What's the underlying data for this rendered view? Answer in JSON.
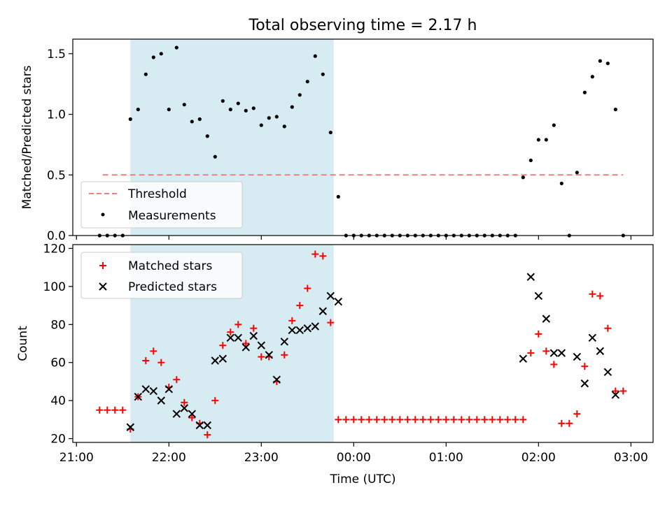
{
  "chart_data": [
    {
      "type": "scatter",
      "title": "Total observing time = 2.17 h",
      "ylabel": "Matched/Predicted stars",
      "ylim": [
        0,
        1.62
      ],
      "xlim_hours": [
        20.96,
        27.24
      ],
      "yticks": [
        0.0,
        0.5,
        1.0,
        1.5
      ],
      "ytick_labels": [
        "0.0",
        "0.5",
        "1.0",
        "1.5"
      ],
      "shaded_span": [
        "21:35",
        "23:47"
      ],
      "grid": false,
      "legend_position": "lower-left",
      "threshold": {
        "name": "Threshold",
        "value": 0.5,
        "x_start": "21:17",
        "x_end": "02:55",
        "color": "#f08080"
      },
      "series": [
        {
          "name": "Measurements",
          "color": "#000000",
          "points": [
            [
              "21:15",
              0
            ],
            [
              "21:20",
              0
            ],
            [
              "21:25",
              0
            ],
            [
              "21:30",
              0
            ],
            [
              "21:35",
              0.96
            ],
            [
              "21:40",
              1.04
            ],
            [
              "21:45",
              1.33
            ],
            [
              "21:50",
              1.47
            ],
            [
              "21:55",
              1.5
            ],
            [
              "22:00",
              1.04
            ],
            [
              "22:05",
              1.55
            ],
            [
              "22:10",
              1.08
            ],
            [
              "22:15",
              0.94
            ],
            [
              "22:20",
              0.96
            ],
            [
              "22:25",
              0.82
            ],
            [
              "22:30",
              0.65
            ],
            [
              "22:35",
              1.11
            ],
            [
              "22:40",
              1.04
            ],
            [
              "22:45",
              1.09
            ],
            [
              "22:50",
              1.03
            ],
            [
              "22:55",
              1.05
            ],
            [
              "23:00",
              0.91
            ],
            [
              "23:05",
              0.97
            ],
            [
              "23:10",
              0.98
            ],
            [
              "23:15",
              0.9
            ],
            [
              "23:20",
              1.06
            ],
            [
              "23:25",
              1.16
            ],
            [
              "23:30",
              1.27
            ],
            [
              "23:35",
              1.48
            ],
            [
              "23:40",
              1.33
            ],
            [
              "23:45",
              0.85
            ],
            [
              "23:50",
              0.32
            ],
            [
              "23:55",
              0
            ],
            [
              "00:00",
              0
            ],
            [
              "00:05",
              0
            ],
            [
              "00:10",
              0
            ],
            [
              "00:15",
              0
            ],
            [
              "00:20",
              0
            ],
            [
              "00:25",
              0
            ],
            [
              "00:30",
              0
            ],
            [
              "00:35",
              0
            ],
            [
              "00:40",
              0
            ],
            [
              "00:45",
              0
            ],
            [
              "00:50",
              0
            ],
            [
              "00:55",
              0
            ],
            [
              "01:00",
              0
            ],
            [
              "01:05",
              0
            ],
            [
              "01:10",
              0
            ],
            [
              "01:15",
              0
            ],
            [
              "01:20",
              0
            ],
            [
              "01:25",
              0
            ],
            [
              "01:30",
              0
            ],
            [
              "01:35",
              0
            ],
            [
              "01:40",
              0
            ],
            [
              "01:45",
              0
            ],
            [
              "01:50",
              0.48
            ],
            [
              "01:55",
              0.62
            ],
            [
              "02:00",
              0.79
            ],
            [
              "02:05",
              0.79
            ],
            [
              "02:10",
              0.91
            ],
            [
              "02:15",
              0.43
            ],
            [
              "02:20",
              0
            ],
            [
              "02:25",
              0.52
            ],
            [
              "02:30",
              1.18
            ],
            [
              "02:35",
              1.31
            ],
            [
              "02:40",
              1.44
            ],
            [
              "02:45",
              1.42
            ],
            [
              "02:50",
              1.04
            ],
            [
              "02:55",
              0
            ]
          ]
        }
      ]
    },
    {
      "type": "scatter",
      "ylabel": "Count",
      "xlabel": "Time (UTC)",
      "ylim": [
        18,
        122
      ],
      "xlim_hours": [
        20.96,
        27.24
      ],
      "yticks": [
        20,
        40,
        60,
        80,
        100,
        120
      ],
      "ytick_labels": [
        "20",
        "40",
        "60",
        "80",
        "100",
        "120"
      ],
      "xticks_hours": [
        21,
        22,
        23,
        24,
        25,
        26,
        27
      ],
      "xtick_labels": [
        "21:00",
        "22:00",
        "23:00",
        "00:00",
        "01:00",
        "02:00",
        "03:00"
      ],
      "shaded_span": [
        "21:35",
        "23:47"
      ],
      "grid": false,
      "legend_position": "top-left",
      "series": [
        {
          "name": "Matched stars",
          "marker": "plus",
          "color": "#ff0000",
          "points": [
            [
              "21:15",
              35
            ],
            [
              "21:20",
              35
            ],
            [
              "21:25",
              35
            ],
            [
              "21:30",
              35
            ],
            [
              "21:35",
              25
            ],
            [
              "21:40",
              42
            ],
            [
              "21:45",
              61
            ],
            [
              "21:50",
              66
            ],
            [
              "21:55",
              60
            ],
            [
              "22:00",
              47
            ],
            [
              "22:05",
              51
            ],
            [
              "22:10",
              39
            ],
            [
              "22:15",
              31
            ],
            [
              "22:20",
              28
            ],
            [
              "22:25",
              22
            ],
            [
              "22:30",
              40
            ],
            [
              "22:35",
              69
            ],
            [
              "22:40",
              76
            ],
            [
              "22:45",
              80
            ],
            [
              "22:50",
              70
            ],
            [
              "22:55",
              78
            ],
            [
              "23:00",
              63
            ],
            [
              "23:05",
              63
            ],
            [
              "23:10",
              50
            ],
            [
              "23:15",
              64
            ],
            [
              "23:20",
              82
            ],
            [
              "23:25",
              90
            ],
            [
              "23:30",
              99
            ],
            [
              "23:35",
              117
            ],
            [
              "23:40",
              116
            ],
            [
              "23:45",
              81
            ],
            [
              "23:50",
              30
            ],
            [
              "23:55",
              30
            ],
            [
              "00:00",
              30
            ],
            [
              "00:05",
              30
            ],
            [
              "00:10",
              30
            ],
            [
              "00:15",
              30
            ],
            [
              "00:20",
              30
            ],
            [
              "00:25",
              30
            ],
            [
              "00:30",
              30
            ],
            [
              "00:35",
              30
            ],
            [
              "00:40",
              30
            ],
            [
              "00:45",
              30
            ],
            [
              "00:50",
              30
            ],
            [
              "00:55",
              30
            ],
            [
              "01:00",
              30
            ],
            [
              "01:05",
              30
            ],
            [
              "01:10",
              30
            ],
            [
              "01:15",
              30
            ],
            [
              "01:20",
              30
            ],
            [
              "01:25",
              30
            ],
            [
              "01:30",
              30
            ],
            [
              "01:35",
              30
            ],
            [
              "01:40",
              30
            ],
            [
              "01:45",
              30
            ],
            [
              "01:50",
              30
            ],
            [
              "01:55",
              65
            ],
            [
              "02:00",
              75
            ],
            [
              "02:05",
              66
            ],
            [
              "02:10",
              59
            ],
            [
              "02:15",
              28
            ],
            [
              "02:20",
              28
            ],
            [
              "02:25",
              33
            ],
            [
              "02:30",
              58
            ],
            [
              "02:35",
              96
            ],
            [
              "02:40",
              95
            ],
            [
              "02:45",
              78
            ],
            [
              "02:50",
              45
            ],
            [
              "02:55",
              45
            ]
          ]
        },
        {
          "name": "Predicted stars",
          "marker": "x",
          "color": "#000000",
          "points": [
            [
              "21:35",
              26
            ],
            [
              "21:40",
              42
            ],
            [
              "21:45",
              46
            ],
            [
              "21:50",
              45
            ],
            [
              "21:55",
              40
            ],
            [
              "22:00",
              46
            ],
            [
              "22:05",
              33
            ],
            [
              "22:10",
              36
            ],
            [
              "22:15",
              33
            ],
            [
              "22:20",
              27
            ],
            [
              "22:25",
              27
            ],
            [
              "22:30",
              61
            ],
            [
              "22:35",
              62
            ],
            [
              "22:40",
              73
            ],
            [
              "22:45",
              73
            ],
            [
              "22:50",
              68
            ],
            [
              "22:55",
              74
            ],
            [
              "23:00",
              69
            ],
            [
              "23:05",
              64
            ],
            [
              "23:10",
              51
            ],
            [
              "23:15",
              71
            ],
            [
              "23:20",
              77
            ],
            [
              "23:25",
              77
            ],
            [
              "23:30",
              78
            ],
            [
              "23:35",
              79
            ],
            [
              "23:40",
              87
            ],
            [
              "23:45",
              95
            ],
            [
              "23:50",
              92
            ],
            [
              "01:50",
              62
            ],
            [
              "01:55",
              105
            ],
            [
              "02:00",
              95
            ],
            [
              "02:05",
              83
            ],
            [
              "02:10",
              65
            ],
            [
              "02:15",
              65
            ],
            [
              "02:25",
              63
            ],
            [
              "02:30",
              49
            ],
            [
              "02:35",
              73
            ],
            [
              "02:40",
              66
            ],
            [
              "02:45",
              55
            ],
            [
              "02:50",
              43
            ]
          ]
        }
      ]
    }
  ]
}
